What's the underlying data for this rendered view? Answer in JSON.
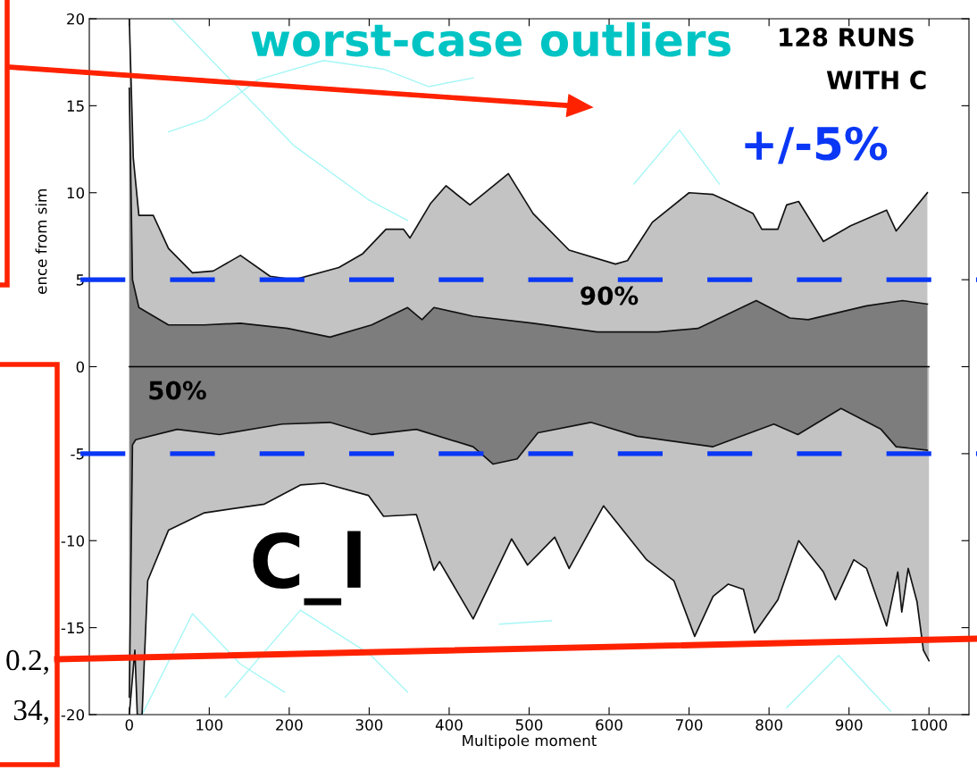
{
  "chart_data": {
    "type": "area",
    "xlabel": "Multipole moment",
    "ylabel": "ence from sim",
    "xlim": [
      -50,
      1050
    ],
    "ylim": [
      -20,
      20
    ],
    "xticks": [
      0,
      100,
      200,
      300,
      400,
      500,
      600,
      700,
      800,
      900,
      1000
    ],
    "yticks": [
      20,
      15,
      10,
      5,
      0,
      -5,
      -10,
      -15,
      -20
    ],
    "grid": false,
    "series": [
      {
        "type": "line",
        "color": "#a6f6f6",
        "x": [
          53,
          206,
          299,
          348
        ],
        "values": [
          20,
          12.7,
          9.6,
          8.4
        ]
      },
      {
        "type": "line",
        "color": "#a6f6f6",
        "x": [
          49,
          94,
          161,
          243,
          318,
          374,
          430
        ],
        "values": [
          13.5,
          14.2,
          16.5,
          17.6,
          17.1,
          16.1,
          16.6
        ]
      },
      {
        "type": "line",
        "color": "#a6f6f6",
        "x": [
          631,
          688,
          738
        ],
        "values": [
          10.5,
          13.6,
          10.5
        ]
      },
      {
        "type": "line",
        "color": "#a6f6f6",
        "x": [
          16,
          79,
          139,
          194
        ],
        "values": [
          -20,
          -14.2,
          -17.1,
          -18.7
        ]
      },
      {
        "type": "line",
        "color": "#a6f6f6",
        "x": [
          120,
          214,
          300,
          348
        ],
        "values": [
          -19,
          -14.0,
          -16.5,
          -18.7
        ]
      },
      {
        "type": "line",
        "color": "#a6f6f6",
        "x": [
          463,
          528
        ],
        "values": [
          -14.8,
          -14.6
        ]
      },
      {
        "type": "line",
        "color": "#a6f6f6",
        "x": [
          822,
          887,
          952
        ],
        "values": [
          -19.6,
          -16.6,
          -19.8
        ]
      },
      {
        "name": "90%",
        "color": "#c3c3c3",
        "x": [
          0,
          5,
          12,
          30,
          49,
          79,
          105,
          139,
          176,
          206,
          262,
          292,
          321,
          343,
          351,
          377,
          396,
          426,
          474,
          505,
          550,
          608,
          623,
          654,
          700,
          730,
          749,
          780,
          791,
          811,
          822,
          837,
          868,
          902,
          947,
          959,
          998
        ],
        "values": [
          20,
          12,
          8.7,
          8.7,
          6.8,
          5.4,
          5.5,
          6.4,
          5.2,
          5.0,
          5.7,
          6.5,
          7.9,
          7.9,
          7.4,
          9.4,
          10.4,
          9.3,
          11.1,
          8.8,
          6.7,
          5.9,
          6.1,
          8.3,
          10.0,
          9.9,
          9.5,
          8.8,
          7.9,
          7.9,
          9.3,
          9.5,
          7.2,
          8.1,
          9.0,
          7.8,
          10.0
        ]
      },
      {
        "color": "#c3c3c3",
        "x": [
          0,
          7,
          10,
          16,
          23,
          49,
          94,
          169,
          214,
          243,
          299,
          318,
          359,
          381,
          388,
          430,
          478,
          498,
          532,
          550,
          593,
          647,
          681,
          707,
          730,
          749,
          768,
          782,
          811,
          837,
          868,
          883,
          906,
          922,
          947,
          961,
          966,
          974,
          985,
          993,
          1000
        ],
        "values": [
          -20,
          -16.3,
          -20,
          -20,
          -12.3,
          -9.4,
          -8.4,
          -7.9,
          -6.8,
          -6.7,
          -7.4,
          -8.6,
          -8.5,
          -11.7,
          -11.2,
          -14.5,
          -9.9,
          -11.4,
          -9.8,
          -11.6,
          -8.0,
          -11.1,
          -12.3,
          -15.5,
          -13.2,
          -12.5,
          -12.8,
          -15.3,
          -13.4,
          -10.0,
          -11.8,
          -13.4,
          -11.1,
          -11.6,
          -14.9,
          -11.8,
          -14.1,
          -11.6,
          -13.5,
          -16.3,
          -16.9
        ]
      },
      {
        "color": "#7d7d7d",
        "x": [
          0,
          4,
          12,
          49,
          94,
          139,
          198,
          251,
          303,
          348,
          366,
          381,
          430,
          505,
          585,
          661,
          711,
          784,
          826,
          849,
          922,
          967,
          998
        ],
        "values": [
          16,
          5.0,
          3.4,
          2.4,
          2.4,
          2.5,
          2.2,
          1.7,
          2.4,
          3.4,
          2.7,
          3.4,
          2.9,
          2.5,
          2.0,
          2.0,
          2.2,
          3.8,
          2.8,
          2.7,
          3.5,
          3.8,
          3.6
        ]
      },
      {
        "name": "50%",
        "color": "#7d7d7d",
        "x": [
          0,
          4,
          8,
          60,
          113,
          191,
          251,
          303,
          359,
          430,
          455,
          485,
          511,
          577,
          635,
          730,
          806,
          836,
          890,
          940,
          959,
          998
        ],
        "values": [
          -19,
          -4.5,
          -4.2,
          -3.6,
          -3.9,
          -3.3,
          -3.2,
          -3.9,
          -3.6,
          -4.6,
          -5.6,
          -5.3,
          -3.8,
          -3.2,
          -4.0,
          -4.6,
          -3.3,
          -3.9,
          -2.4,
          -3.6,
          -4.6,
          -4.8
        ]
      },
      {
        "type": "line",
        "color": "#000000",
        "x": [
          0,
          1000
        ],
        "values": [
          0,
          0
        ]
      }
    ],
    "ref_lines": [
      {
        "axis": "y",
        "value": 5,
        "color": "#0a37f5",
        "line_style": "dashed"
      },
      {
        "axis": "y",
        "value": -5,
        "color": "#0a37f5",
        "line_style": "dashed"
      }
    ],
    "annotations": [
      "worst-case outliers",
      "128 RUNS",
      "WITH C",
      "+/-5%",
      "C_l",
      "0.2,",
      "34,"
    ]
  }
}
